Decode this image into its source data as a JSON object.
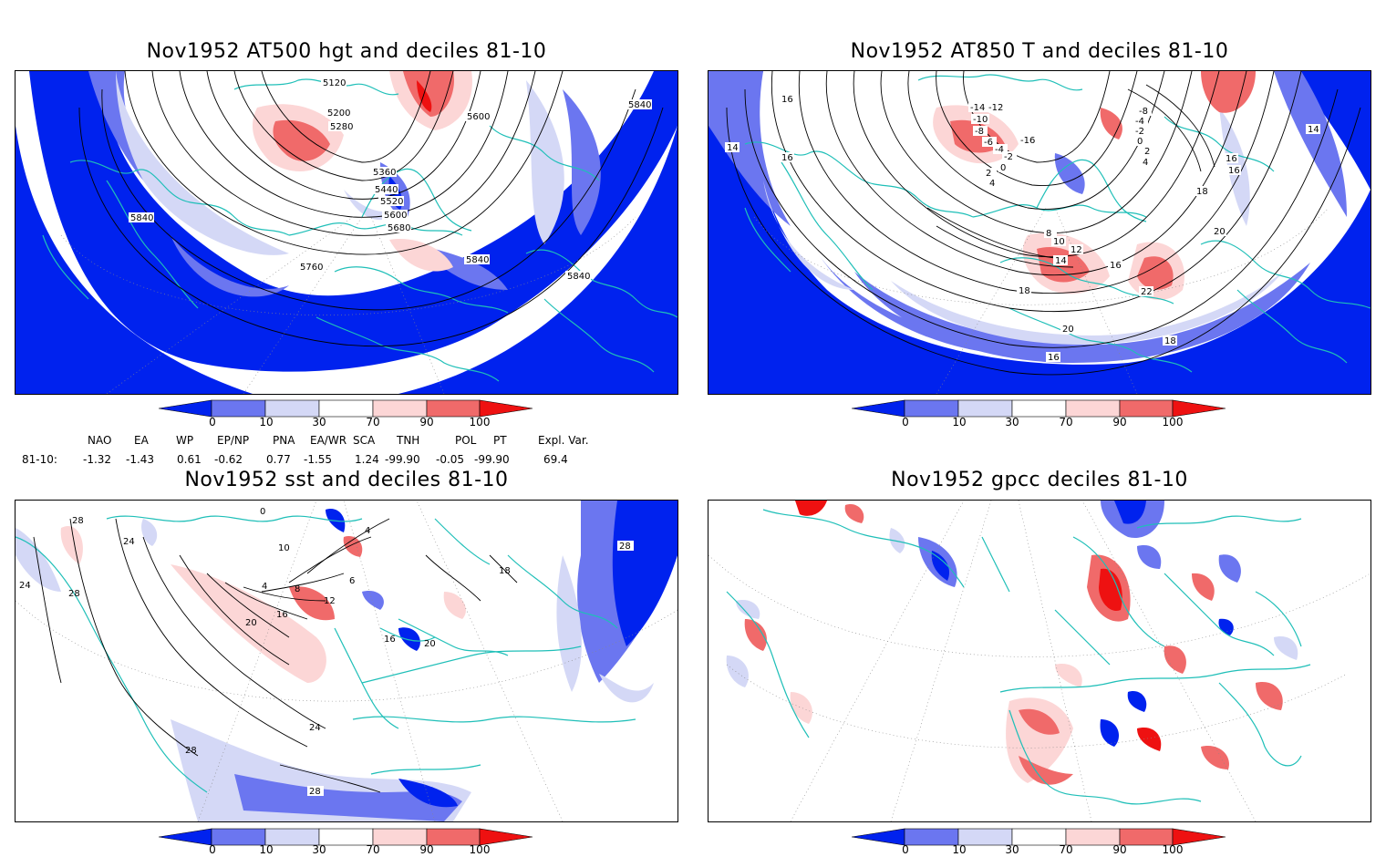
{
  "panels": [
    {
      "id": "p1",
      "title": "Nov1952 AT500 hgt and deciles 81-10",
      "contour_labels": [
        "5120",
        "5200",
        "5280",
        "5600",
        "5360",
        "5440",
        "5520",
        "5600",
        "5680",
        "5840",
        "5840",
        "5760",
        "5840",
        "5840",
        "5840"
      ]
    },
    {
      "id": "p2",
      "title": "Nov1952 AT850 T and deciles 81-10",
      "contour_labels": [
        "16",
        "14",
        "16",
        "-14",
        "-12",
        "-10",
        "-8",
        "-6",
        "-4",
        "-2",
        "0",
        "2",
        "4",
        "8",
        "10",
        "12",
        "14",
        "16",
        "18",
        "20",
        "22",
        "18",
        "16",
        "20",
        "18",
        "14",
        "16",
        "-16",
        "-8",
        "-4",
        "-2",
        "0",
        "2",
        "4",
        "16"
      ]
    },
    {
      "id": "p3",
      "title": "Nov1952 sst and deciles 81-10",
      "contour_labels": [
        "28",
        "24",
        "24",
        "28",
        "0",
        "10",
        "4",
        "4",
        "6",
        "8",
        "12",
        "16",
        "20",
        "16",
        "20",
        "18",
        "24",
        "28",
        "28",
        "28"
      ]
    },
    {
      "id": "p4",
      "title": "Nov1952 gpcc deciles 81-10",
      "contour_labels": []
    }
  ],
  "colorbar": {
    "labels": [
      "0",
      "10",
      "30",
      "70",
      "90",
      "100"
    ],
    "colors": [
      "#0022ee",
      "#6b76f0",
      "#d4d8f6",
      "#ffffff",
      "#fcd6d6",
      "#f06a6a",
      "#ee1111"
    ]
  },
  "indices": {
    "headers": [
      "NAO",
      "EA",
      "WP",
      "EP/NP",
      "PNA",
      "EA/WR",
      "SCA",
      "TNH",
      "POL",
      "PT",
      "Expl. Var."
    ],
    "row_label": "81-10:",
    "values": [
      "-1.32",
      "-1.43",
      "0.61",
      "-0.62",
      "0.77",
      "-1.55",
      "1.24",
      "-99.90",
      "-0.05",
      "-99.90",
      "69.4"
    ]
  },
  "colors": {
    "coast": "#1fbfb8",
    "contour": "#000000",
    "grid": "#888888"
  }
}
